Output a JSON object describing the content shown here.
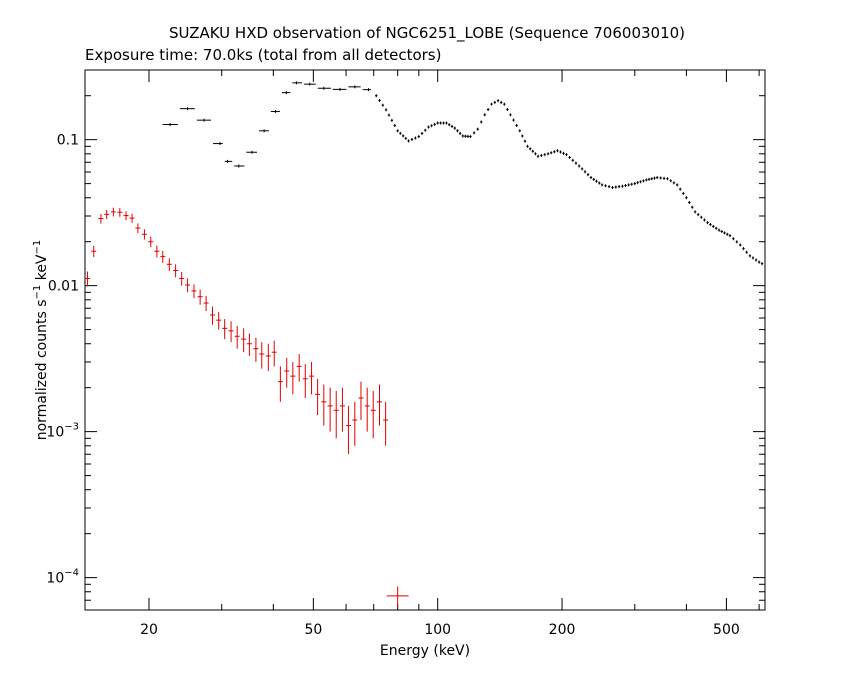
{
  "chart_data": {
    "type": "scatter",
    "title": "SUZAKU HXD observation of NGC6251_LOBE (Sequence 706003010)",
    "subtitle": "Exposure time: 70.0ks (total from all detectors)",
    "xlabel": "Energy (keV)",
    "ylabel_parts": {
      "main": "normalized counts s",
      "exp1": "−1",
      "mid": " keV",
      "exp2": "−1"
    },
    "x_scale": "log",
    "y_scale": "log",
    "xlim": [
      14,
      620
    ],
    "ylim": [
      6e-05,
      0.3
    ],
    "x_ticks": [
      {
        "v": 20,
        "label": "20"
      },
      {
        "v": 50,
        "label": "50"
      },
      {
        "v": 100,
        "label": "100"
      },
      {
        "v": 200,
        "label": "200"
      },
      {
        "v": 500,
        "label": "500"
      }
    ],
    "y_ticks": [
      {
        "v": 0.1,
        "label": "0.1",
        "base": "",
        "exp": ""
      },
      {
        "v": 0.01,
        "label": "0.01",
        "base": "",
        "exp": ""
      },
      {
        "v": 0.001,
        "label": "",
        "base": "10",
        "exp": "−3"
      },
      {
        "v": 0.0001,
        "label": "",
        "base": "10",
        "exp": "−4"
      }
    ],
    "grid": false,
    "series": [
      {
        "color": "#000000",
        "marker": "cross",
        "binned": [
          [
            22.5,
            0.127
          ],
          [
            24.8,
            0.163
          ],
          [
            27.2,
            0.136
          ],
          [
            29.7,
            0.094
          ],
          [
            31.0,
            0.071
          ],
          [
            33.0,
            0.066
          ],
          [
            35.5,
            0.082
          ],
          [
            38.0,
            0.115
          ],
          [
            40.5,
            0.156
          ],
          [
            43.0,
            0.21
          ],
          [
            45.5,
            0.245
          ],
          [
            49.0,
            0.24
          ],
          [
            53.0,
            0.225
          ],
          [
            58.0,
            0.221
          ],
          [
            63.0,
            0.23
          ],
          [
            68.0,
            0.22
          ]
        ],
        "curve": [
          [
            71,
            0.2
          ],
          [
            75,
            0.16
          ],
          [
            80,
            0.115
          ],
          [
            85,
            0.098
          ],
          [
            90,
            0.105
          ],
          [
            95,
            0.122
          ],
          [
            100,
            0.13
          ],
          [
            105,
            0.13
          ],
          [
            110,
            0.12
          ],
          [
            115,
            0.106
          ],
          [
            120,
            0.105
          ],
          [
            125,
            0.118
          ],
          [
            130,
            0.148
          ],
          [
            135,
            0.175
          ],
          [
            140,
            0.185
          ],
          [
            145,
            0.175
          ],
          [
            150,
            0.148
          ],
          [
            158,
            0.115
          ],
          [
            165,
            0.09
          ],
          [
            175,
            0.077
          ],
          [
            185,
            0.08
          ],
          [
            195,
            0.084
          ],
          [
            205,
            0.079
          ],
          [
            220,
            0.066
          ],
          [
            235,
            0.055
          ],
          [
            250,
            0.049
          ],
          [
            265,
            0.047
          ],
          [
            280,
            0.048
          ],
          [
            300,
            0.05
          ],
          [
            320,
            0.053
          ],
          [
            340,
            0.055
          ],
          [
            360,
            0.054
          ],
          [
            380,
            0.049
          ],
          [
            400,
            0.04
          ],
          [
            420,
            0.032
          ],
          [
            450,
            0.027
          ],
          [
            480,
            0.024
          ],
          [
            510,
            0.022
          ],
          [
            540,
            0.019
          ],
          [
            570,
            0.016
          ],
          [
            600,
            0.0145
          ],
          [
            620,
            0.0138
          ]
        ]
      },
      {
        "color": "#e10000",
        "marker": "errorbar",
        "points": [
          [
            14.2,
            0.0112,
            0.0013
          ],
          [
            14.7,
            0.0172,
            0.0015
          ],
          [
            15.3,
            0.0288,
            0.0022
          ],
          [
            15.8,
            0.0308,
            0.0022
          ],
          [
            16.4,
            0.032,
            0.0022
          ],
          [
            17.0,
            0.0318,
            0.0022
          ],
          [
            17.6,
            0.0302,
            0.0021
          ],
          [
            18.2,
            0.029,
            0.0021
          ],
          [
            18.8,
            0.0248,
            0.0019
          ],
          [
            19.5,
            0.0225,
            0.0018
          ],
          [
            20.2,
            0.02,
            0.0017
          ],
          [
            20.9,
            0.0172,
            0.0016
          ],
          [
            21.6,
            0.0158,
            0.0015
          ],
          [
            22.4,
            0.014,
            0.0014
          ],
          [
            23.2,
            0.0127,
            0.0013
          ],
          [
            24.0,
            0.0112,
            0.0012
          ],
          [
            24.8,
            0.0101,
            0.0011
          ],
          [
            25.7,
            0.0092,
            0.001
          ],
          [
            26.6,
            0.0084,
            0.001
          ],
          [
            27.5,
            0.0076,
            0.0009
          ],
          [
            28.5,
            0.0063,
            0.0009
          ],
          [
            29.5,
            0.0058,
            0.0008
          ],
          [
            30.5,
            0.0051,
            0.0008
          ],
          [
            31.6,
            0.0049,
            0.0008
          ],
          [
            32.7,
            0.0045,
            0.0008
          ],
          [
            33.9,
            0.0043,
            0.0008
          ],
          [
            35.0,
            0.004,
            0.0007
          ],
          [
            36.3,
            0.0037,
            0.0007
          ],
          [
            37.5,
            0.0034,
            0.0007
          ],
          [
            38.9,
            0.0033,
            0.0007
          ],
          [
            40.2,
            0.0035,
            0.0007
          ],
          [
            41.6,
            0.0022,
            0.0006
          ],
          [
            43.1,
            0.0026,
            0.0006
          ],
          [
            44.6,
            0.0024,
            0.0006
          ],
          [
            46.2,
            0.0028,
            0.0006
          ],
          [
            47.8,
            0.0023,
            0.0006
          ],
          [
            49.5,
            0.0024,
            0.0006
          ],
          [
            51.2,
            0.0018,
            0.0005
          ],
          [
            53.0,
            0.0016,
            0.0005
          ],
          [
            54.9,
            0.0015,
            0.0005
          ],
          [
            56.8,
            0.0014,
            0.0005
          ],
          [
            58.8,
            0.0015,
            0.0005
          ],
          [
            60.8,
            0.0011,
            0.0004
          ],
          [
            63.0,
            0.0012,
            0.0004
          ],
          [
            65.2,
            0.0017,
            0.0005
          ],
          [
            67.5,
            0.0015,
            0.0005
          ],
          [
            69.8,
            0.0014,
            0.0005
          ],
          [
            72.3,
            0.0016,
            0.0005
          ],
          [
            74.8,
            0.0012,
            0.0004
          ],
          [
            80.0,
            7.5e-05,
            1.2e-05
          ]
        ]
      }
    ]
  }
}
